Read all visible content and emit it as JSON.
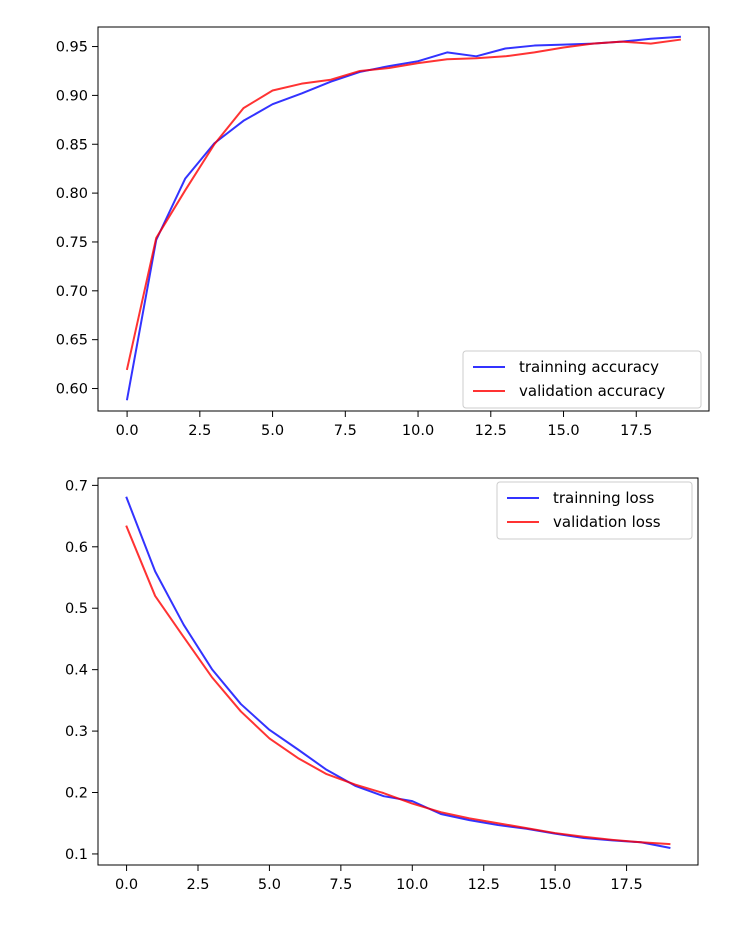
{
  "chart_data": [
    {
      "type": "line",
      "title": "",
      "xlabel": "",
      "ylabel": "",
      "xlim": [
        -1.0,
        20.0
      ],
      "ylim": [
        0.577,
        0.97
      ],
      "xticks": [
        0.0,
        2.5,
        5.0,
        7.5,
        10.0,
        12.5,
        15.0,
        17.5
      ],
      "xtick_labels": [
        "0.0",
        "2.5",
        "5.0",
        "7.5",
        "10.0",
        "12.5",
        "15.0",
        "17.5"
      ],
      "yticks": [
        0.6,
        0.65,
        0.7,
        0.75,
        0.8,
        0.85,
        0.9,
        0.95
      ],
      "ytick_labels": [
        "0.60",
        "0.65",
        "0.70",
        "0.75",
        "0.80",
        "0.85",
        "0.90",
        "0.95"
      ],
      "grid": false,
      "legend_position": "lower-right",
      "x": [
        0,
        1,
        2,
        3,
        4,
        5,
        6,
        7,
        8,
        9,
        10,
        11,
        12,
        13,
        14,
        15,
        16,
        17,
        18,
        19
      ],
      "series": [
        {
          "name": "trainning accuracy",
          "color": "#0000ff",
          "values": [
            0.589,
            0.752,
            0.815,
            0.851,
            0.874,
            0.891,
            0.902,
            0.914,
            0.924,
            0.93,
            0.935,
            0.944,
            0.94,
            0.948,
            0.951,
            0.952,
            0.953,
            0.955,
            0.958,
            0.96
          ]
        },
        {
          "name": "validation accuracy",
          "color": "#ff0000",
          "values": [
            0.62,
            0.754,
            0.803,
            0.85,
            0.887,
            0.905,
            0.912,
            0.916,
            0.925,
            0.928,
            0.933,
            0.937,
            0.938,
            0.94,
            0.944,
            0.949,
            0.953,
            0.955,
            0.953,
            0.957
          ]
        }
      ]
    },
    {
      "type": "line",
      "title": "",
      "xlabel": "",
      "ylabel": "",
      "xlim": [
        -1.0,
        20.0
      ],
      "ylim": [
        0.082,
        0.712
      ],
      "xticks": [
        0.0,
        2.5,
        5.0,
        7.5,
        10.0,
        12.5,
        15.0,
        17.5
      ],
      "xtick_labels": [
        "0.0",
        "2.5",
        "5.0",
        "7.5",
        "10.0",
        "12.5",
        "15.0",
        "17.5"
      ],
      "yticks": [
        0.1,
        0.2,
        0.3,
        0.4,
        0.5,
        0.6,
        0.7
      ],
      "ytick_labels": [
        "0.1",
        "0.2",
        "0.3",
        "0.4",
        "0.5",
        "0.6",
        "0.7"
      ],
      "grid": false,
      "legend_position": "upper-right",
      "x": [
        0,
        1,
        2,
        3,
        4,
        5,
        6,
        7,
        8,
        9,
        10,
        11,
        12,
        13,
        14,
        15,
        16,
        17,
        18,
        19
      ],
      "series": [
        {
          "name": "trainning loss",
          "color": "#0000ff",
          "values": [
            0.68,
            0.56,
            0.473,
            0.4,
            0.344,
            0.302,
            0.27,
            0.237,
            0.211,
            0.194,
            0.186,
            0.165,
            0.155,
            0.147,
            0.141,
            0.133,
            0.126,
            0.122,
            0.119,
            0.11
          ]
        },
        {
          "name": "validation loss",
          "color": "#ff0000",
          "values": [
            0.633,
            0.52,
            0.453,
            0.387,
            0.332,
            0.288,
            0.256,
            0.23,
            0.213,
            0.199,
            0.182,
            0.168,
            0.158,
            0.15,
            0.142,
            0.134,
            0.128,
            0.123,
            0.119,
            0.116
          ]
        }
      ]
    }
  ]
}
